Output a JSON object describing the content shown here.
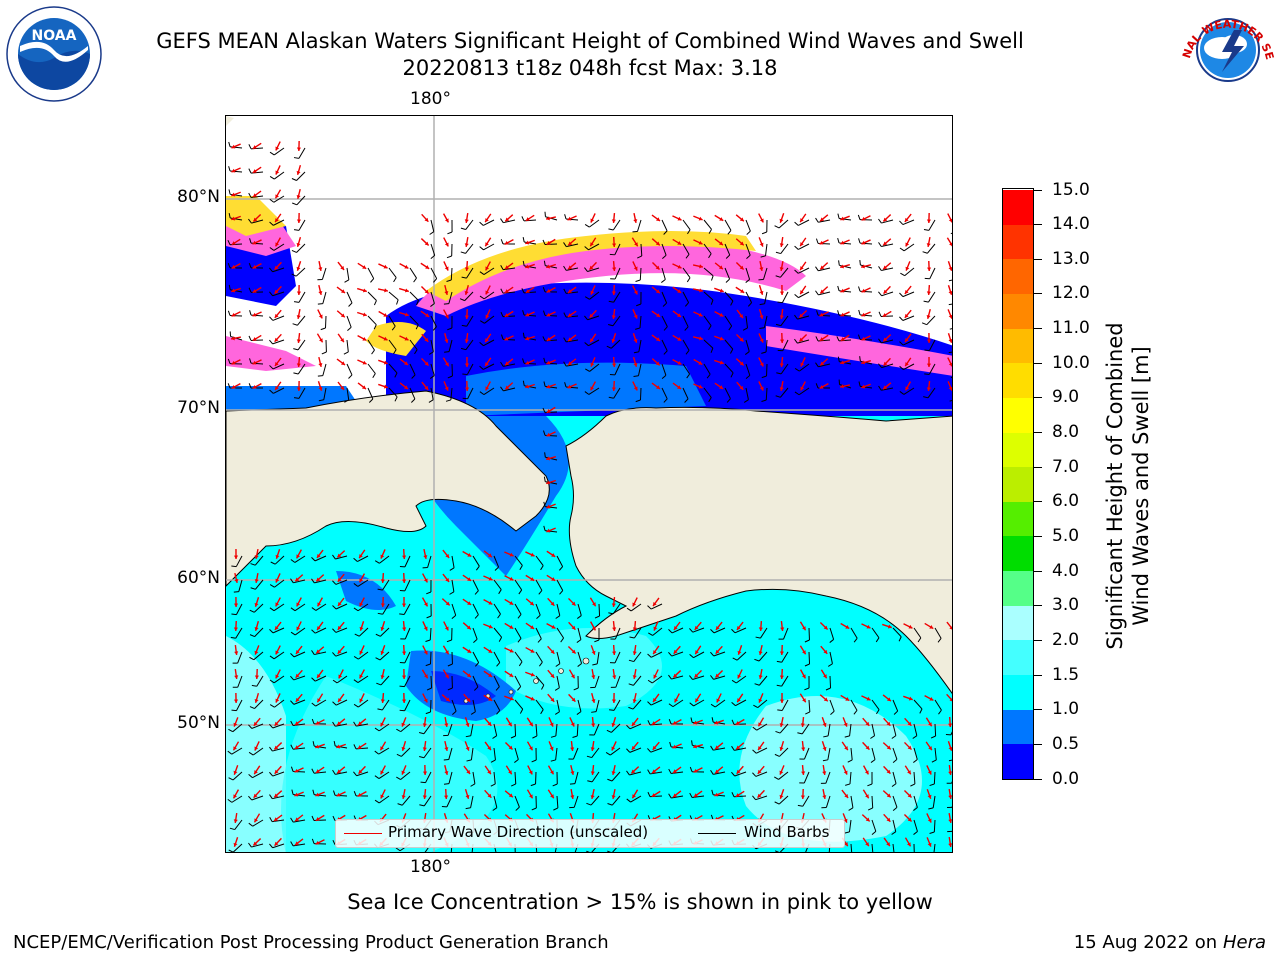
{
  "header": {
    "title_line1": "GEFS MEAN Alaskan Waters Significant Height of Combined Wind Waves and Swell",
    "title_line2": "20220813 t18z 048h fcst   Max: 3.18"
  },
  "logos": {
    "noaa": {
      "text": "NOAA",
      "icon": "noaa-logo-icon"
    },
    "nws": {
      "text": "NATIONAL WEATHER SERVICE",
      "icon": "nws-logo-icon"
    }
  },
  "map": {
    "lon_label_top": "180°",
    "lon_label_bottom": "180°",
    "lat_labels": [
      "80°N",
      "70°N",
      "60°N",
      "50°N"
    ],
    "colors": {
      "land": "#f0eddc",
      "ice_pink": "#ff66dd",
      "ice_yellow": "#ffdd33",
      "wave_arrow": "#ee0000",
      "wind_barb": "#000000",
      "grid": "#b0b0b0"
    }
  },
  "legend": {
    "wave_direction_label": "Primary Wave Direction (unscaled)",
    "wind_barbs_label": "Wind Barbs",
    "wave_direction_color": "#ee0000",
    "wind_barbs_color": "#000000"
  },
  "colorbar": {
    "title_line1": "Significant Height of Combined",
    "title_line2": "Wind Waves and Swell [m]",
    "ticks": [
      "0.0",
      "0.5",
      "1.0",
      "1.5",
      "2.0",
      "3.0",
      "4.0",
      "5.0",
      "6.0",
      "7.0",
      "8.0",
      "9.0",
      "10.0",
      "11.0",
      "12.0",
      "13.0",
      "14.0",
      "15.0"
    ],
    "colors": [
      "#0000ff",
      "#0077ff",
      "#00ffff",
      "#44ffff",
      "#aaffff",
      "#55ff88",
      "#00dd00",
      "#55ee00",
      "#bbee00",
      "#ddff00",
      "#ffff00",
      "#ffdd00",
      "#ffbb00",
      "#ff8800",
      "#ff6600",
      "#ff3300",
      "#ff0000"
    ]
  },
  "caption": "Sea Ice Concentration > 15% is shown in pink to yellow",
  "footer": {
    "left": "NCEP/EMC/Verification Post Processing Product Generation Branch",
    "right_date": "15 Aug 2022 on",
    "right_host": "Hera"
  }
}
